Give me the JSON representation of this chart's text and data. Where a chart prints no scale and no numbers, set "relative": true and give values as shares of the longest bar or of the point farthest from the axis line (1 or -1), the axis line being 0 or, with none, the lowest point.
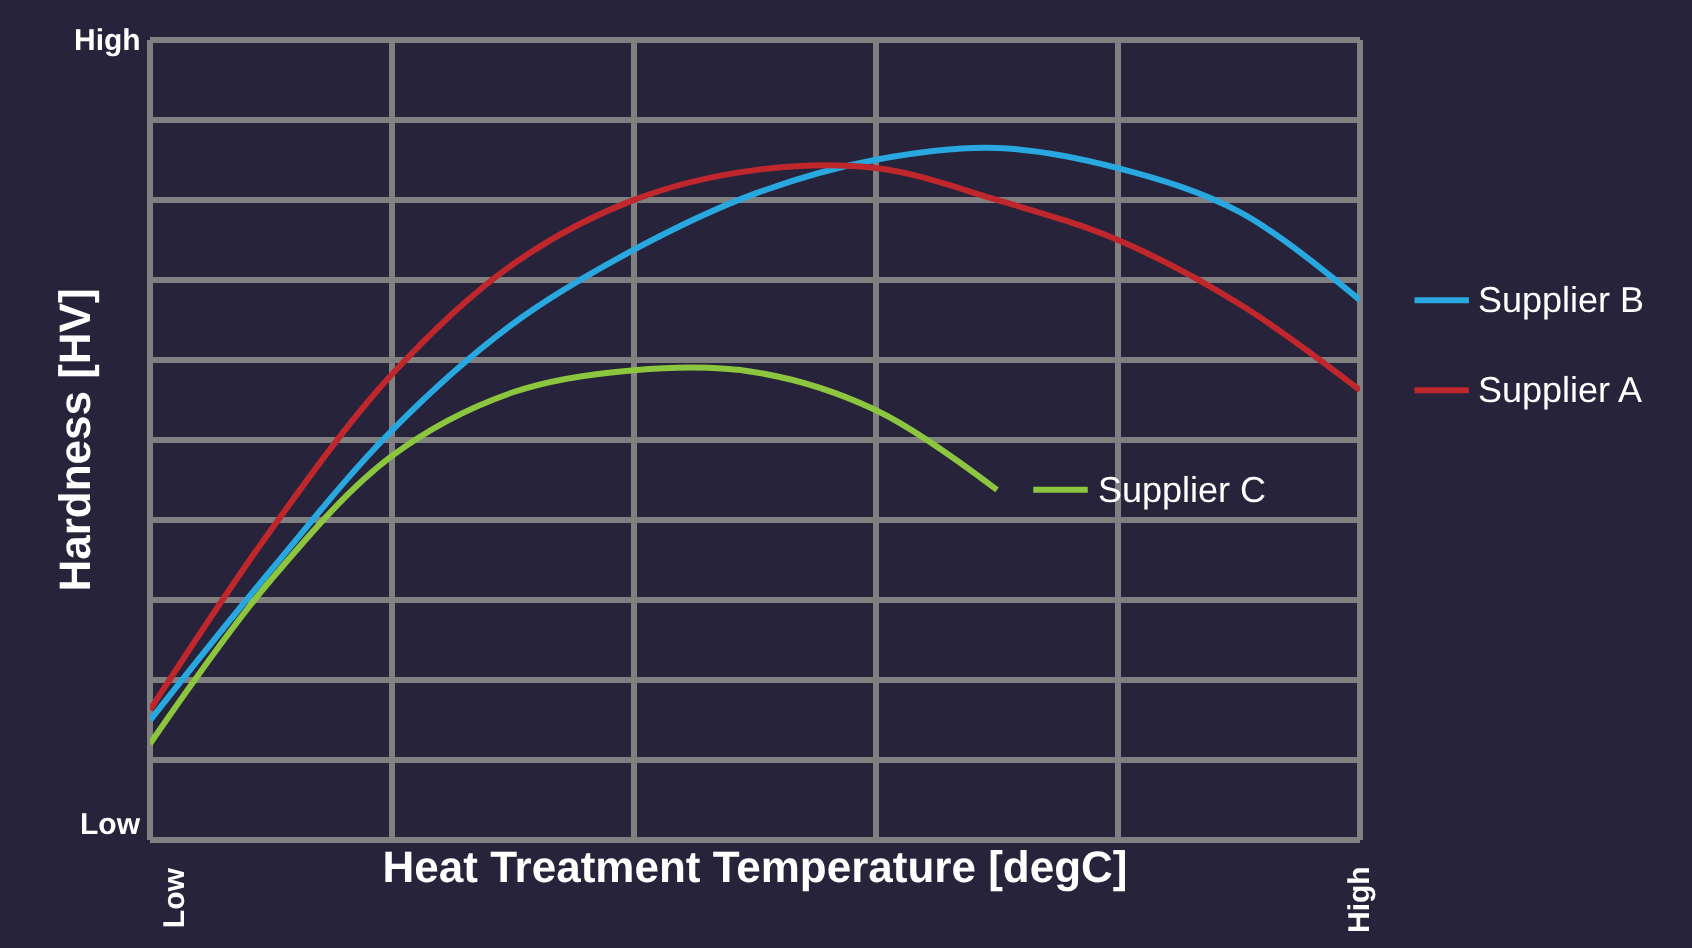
{
  "chart_data": {
    "type": "line",
    "relative": true,
    "xlabel": "Heat Treatment Temperature [degC]",
    "ylabel": "Hardness [HV]",
    "grid": true,
    "legend": "right",
    "marker": "none",
    "line_style": "solid",
    "categories": [
      null,
      null,
      null,
      null,
      null,
      null,
      null,
      null,
      null,
      null,
      null
    ],
    "annotations": [
      "High",
      "Low",
      "Low",
      "High"
    ],
    "series": [
      {
        "name": "Supplier B",
        "color": "#29a8e0",
        "values": [
          0.173,
          0.39,
          0.592,
          0.746,
          0.853,
          0.934,
          0.983,
          1.0,
          0.971,
          0.908,
          0.78
        ]
      },
      {
        "name": "Supplier A",
        "color": "#c0272d",
        "values": [
          0.188,
          0.448,
          0.673,
          0.832,
          0.925,
          0.968,
          0.971,
          0.925,
          0.867,
          0.775,
          0.65
        ]
      },
      {
        "name": "Supplier C",
        "color": "#8cc63f",
        "values": [
          0.139,
          0.376,
          0.555,
          0.647,
          0.679,
          0.676,
          0.621,
          0.506,
          null,
          null,
          null
        ]
      }
    ]
  }
}
